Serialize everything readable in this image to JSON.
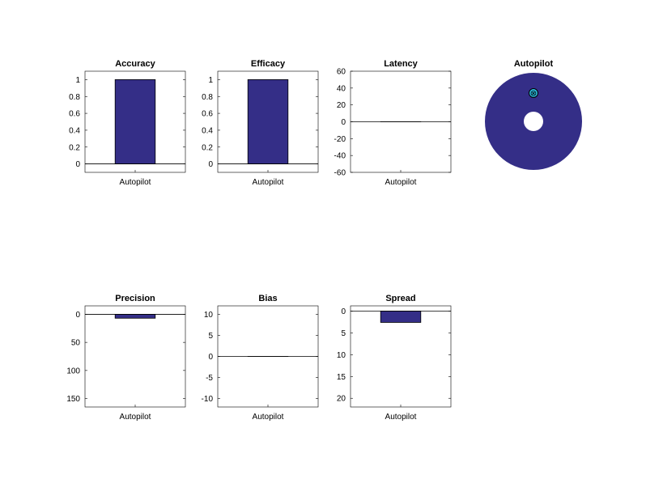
{
  "colors": {
    "bar_fill": "#342E87",
    "bar_edge": "#000000",
    "axis": "#000000",
    "background": "#FFFFFF",
    "marker_fill": "#29B6D8"
  },
  "chart_data": [
    {
      "type": "bar",
      "title": "Accuracy",
      "categories": [
        "Autopilot"
      ],
      "values": [
        1
      ],
      "ylim": [
        -0.1,
        1.1
      ],
      "yticks": [
        0,
        0.2,
        0.4,
        0.6,
        0.8,
        1
      ],
      "ytick_labels": [
        "0",
        "0.2",
        "0.4",
        "0.6",
        "0.8",
        "1"
      ],
      "reverse_y": false,
      "baseline": 0
    },
    {
      "type": "bar",
      "title": "Efficacy",
      "categories": [
        "Autopilot"
      ],
      "values": [
        1
      ],
      "ylim": [
        -0.1,
        1.1
      ],
      "yticks": [
        0,
        0.2,
        0.4,
        0.6,
        0.8,
        1
      ],
      "ytick_labels": [
        "0",
        "0.2",
        "0.4",
        "0.6",
        "0.8",
        "1"
      ],
      "reverse_y": false,
      "baseline": 0
    },
    {
      "type": "bar",
      "title": "Latency",
      "categories": [
        "Autopilot"
      ],
      "values": [
        0
      ],
      "ylim": [
        -60,
        60
      ],
      "yticks": [
        -60,
        -40,
        -20,
        0,
        20,
        40,
        60
      ],
      "ytick_labels": [
        "-60",
        "-40",
        "-20",
        "0",
        "20",
        "40",
        "60"
      ],
      "reverse_y": false,
      "baseline": 0
    },
    {
      "type": "pie",
      "title": "Autopilot",
      "style": "ring",
      "marker_glyph": "⊗"
    },
    {
      "type": "bar",
      "title": "Precision",
      "categories": [
        "Autopilot"
      ],
      "values": [
        7
      ],
      "ylim": [
        -15,
        165
      ],
      "yticks": [
        0,
        50,
        100,
        150
      ],
      "ytick_labels": [
        "0",
        "50",
        "100",
        "150"
      ],
      "reverse_y": true,
      "baseline": 0
    },
    {
      "type": "bar",
      "title": "Bias",
      "categories": [
        "Autopilot"
      ],
      "values": [
        0
      ],
      "ylim": [
        -12,
        12
      ],
      "yticks": [
        -10,
        -5,
        0,
        5,
        10
      ],
      "ytick_labels": [
        "-10",
        "-5",
        "0",
        "5",
        "10"
      ],
      "reverse_y": false,
      "baseline": 0
    },
    {
      "type": "bar",
      "title": "Spread",
      "categories": [
        "Autopilot"
      ],
      "values": [
        2.6
      ],
      "ylim": [
        -1.2,
        22
      ],
      "yticks": [
        0,
        5,
        10,
        15,
        20
      ],
      "ytick_labels": [
        "0",
        "5",
        "10",
        "15",
        "20"
      ],
      "reverse_y": true,
      "baseline": 0
    }
  ]
}
